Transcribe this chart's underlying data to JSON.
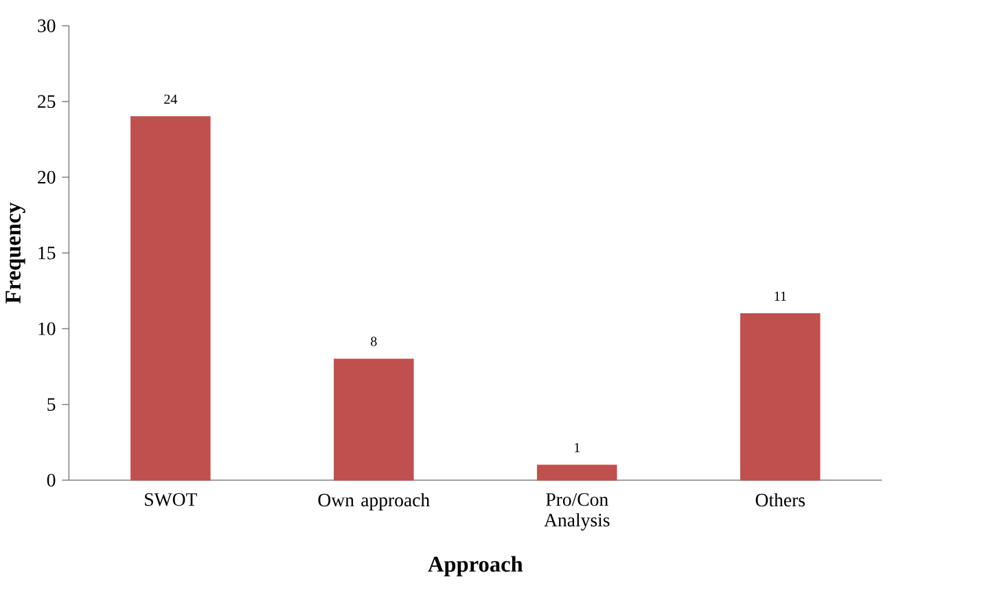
{
  "chart_data": {
    "type": "bar",
    "xlabel": "Approach",
    "ylabel": "Frequency",
    "categories": [
      "SWOT",
      "Own approach",
      "Pro/Con Analysis",
      "Others"
    ],
    "values": [
      24,
      8,
      1,
      11
    ],
    "color": "#c0504d",
    "data_labels": true,
    "ylim": [
      0,
      30
    ],
    "yticks": [
      0,
      5,
      10,
      15,
      20,
      25,
      30
    ],
    "grid": false
  }
}
